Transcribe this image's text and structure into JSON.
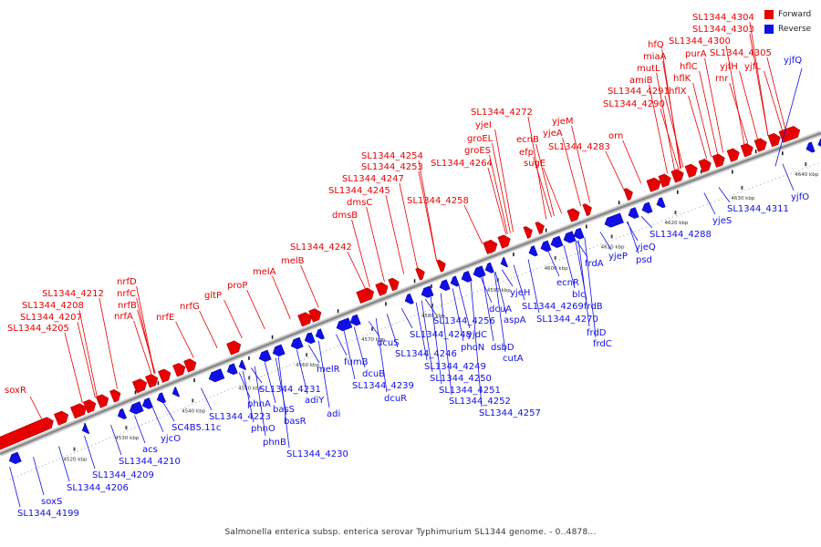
{
  "colors": {
    "forward": "#e80000",
    "reverse": "#1010e6",
    "backbone": "#8a8a8a",
    "tick": "#555555"
  },
  "legend": {
    "forward": "Forward",
    "reverse": "Reverse"
  },
  "caption": "Salmonella enterica subsp. enterica serovar Typhimurium SL1344 genome. - 0..4878...",
  "kbp_ticks": [
    "4520 kbp",
    "4530 kbp",
    "4540 kbp",
    "4550 kbp",
    "4560 kbp",
    "4570 kbp",
    "4580 kbp",
    "4590 kbp",
    "4600 kbp",
    "4610 kbp",
    "4620 kbp",
    "4630 kbp",
    "4640 kbp"
  ],
  "forward_labels": [
    "soxR",
    "SL1344_4205",
    "SL1344_4207",
    "SL1344_4208",
    "SL1344_4212",
    "nrfA",
    "nrfB",
    "nrfC",
    "nrfD",
    "nrfE",
    "nrfG",
    "gltP",
    "proP",
    "melA",
    "melB",
    "SL1344_4242",
    "dmsB",
    "dmsC",
    "SL1344_4245",
    "SL1344_4247",
    "SL1344_4253",
    "SL1344_4254",
    "SL1344_4258",
    "SL1344_4264",
    "groES",
    "groEL",
    "yjeI",
    "SL1344_4272",
    "ecnB",
    "efp",
    "sugE",
    "SL1344_4283",
    "yjeA",
    "yjeM",
    "orn",
    "SL1344_4290",
    "SL1344_4291",
    "amiB",
    "mutL",
    "miaA",
    "hfQ",
    "hflX",
    "hflK",
    "hflC",
    "purA",
    "SL1344_4300",
    "SL1344_4303",
    "SL1344_4304",
    "SL1344_4305",
    "rnr",
    "yjfH",
    "yjfL"
  ],
  "reverse_labels": [
    "SL1344_4199",
    "soxS",
    "SL1344_4206",
    "SL1344_4209",
    "SL1344_4210",
    "acs",
    "yjcO",
    "SC4B5.11c",
    "SL1344_4223",
    "phnA",
    "phnO",
    "phnB",
    "basS",
    "basR",
    "adiY",
    "SL1344_4231",
    "SL1344_4230",
    "adi",
    "melR",
    "fumB",
    "dcuB",
    "SL1344_4239",
    "dcuR",
    "dcuS",
    "SL1344_4246",
    "SL1344_4248",
    "SL1344_4249",
    "SL1344_4250",
    "SL1344_4251",
    "SL1344_4252",
    "SL1344_4256",
    "phoN",
    "yjdC",
    "SL1344_4257",
    "dsbD",
    "cutA",
    "dcuA",
    "aspA",
    "yjeH",
    "SL1344_4269",
    "SL1344_4270",
    "blc",
    "ecnR",
    "frdB",
    "frdD",
    "frdC",
    "frdA",
    "yjeP",
    "yjeQ",
    "psd",
    "SL1344_4288",
    "yjeS",
    "SL1344_4311",
    "yjfO",
    "yjfQ"
  ]
}
